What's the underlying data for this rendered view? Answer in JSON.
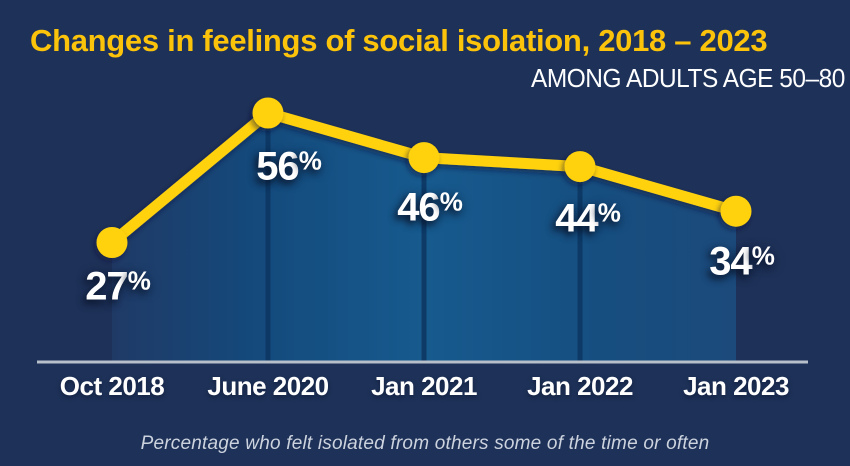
{
  "header": {
    "title": "Changes in feelings of social isolation, 2018 – 2023",
    "subtitle": "AMONG ADULTS AGE 50–80"
  },
  "footnote": "Percentage who felt isolated from others some of the time or often",
  "colors": {
    "background": "#1E3158",
    "title_yellow": "#FCC30B",
    "line_yellow": "#FFD20A",
    "area_fill_left": "#203A66",
    "area_fill_mid": "#175A8E",
    "area_fill_right": "#1C4A7B",
    "guide_line": "#0D3763",
    "axis_line": "#B6BFCA",
    "label_white": "#FFFFFF",
    "footnote_gray": "#CCD3DE"
  },
  "chart_data": {
    "type": "line",
    "title": "Changes in feelings of social isolation, 2018 – 2023",
    "subtitle": "AMONG ADULTS AGE 50–80",
    "categories": [
      "Oct 2018",
      "June 2020",
      "Jan 2021",
      "Jan 2022",
      "Jan 2023"
    ],
    "values": [
      27,
      56,
      46,
      44,
      34
    ],
    "unit": "%",
    "series_name": "Percentage who felt isolated from others some of the time or often",
    "ylim": [
      0,
      77
    ],
    "xlabel": "",
    "ylabel": "",
    "legend_position": "none",
    "area_fill": true,
    "markers": "circle",
    "grid": "vertical-guides-at-points",
    "annotation": "Percentage who felt isolated from others some of the time or often"
  }
}
